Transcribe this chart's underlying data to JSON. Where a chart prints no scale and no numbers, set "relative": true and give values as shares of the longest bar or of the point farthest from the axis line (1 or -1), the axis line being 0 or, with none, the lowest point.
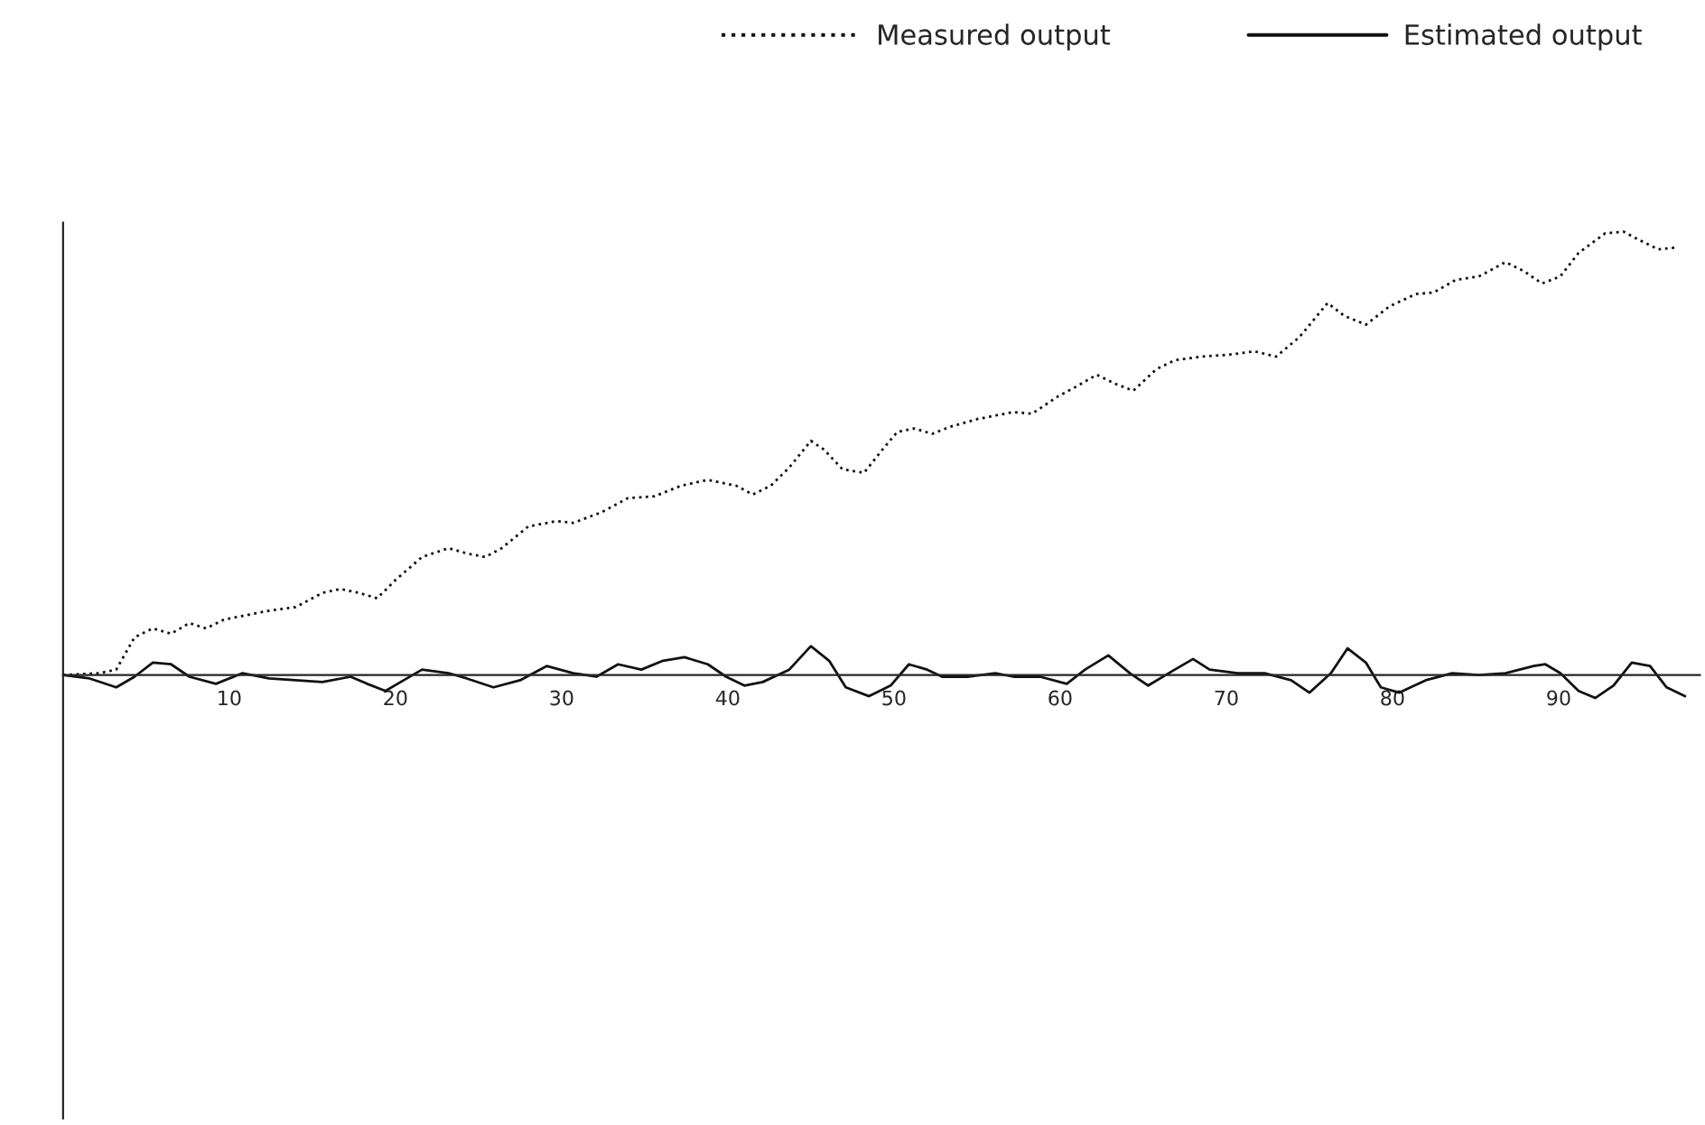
{
  "chart_data": {
    "type": "line",
    "relative": true,
    "x": [
      0,
      2.2,
      3.2,
      4.3,
      5.4,
      6.5,
      7.6,
      8.6,
      9.7,
      10.8,
      12.4,
      14.0,
      15.6,
      16.7,
      17.8,
      18.9,
      20.0,
      21.6,
      23.2,
      24.3,
      25.4,
      26.4,
      28.0,
      29.7,
      30.7,
      32.4,
      34.0,
      35.6,
      37.2,
      38.8,
      40.5,
      41.5,
      42.6,
      43.7,
      45.0,
      45.8,
      46.9,
      48.2,
      49.3,
      50.2,
      51.2,
      52.3,
      53.4,
      55.0,
      56.1,
      57.2,
      58.3,
      59.9,
      60.9,
      62.2,
      63.3,
      64.4,
      65.8,
      66.9,
      68.5,
      70.1,
      71.7,
      73.0,
      74.4,
      76.1,
      77.1,
      78.4,
      79.8,
      81.4,
      82.5,
      83.8,
      85.2,
      86.8,
      87.9,
      89.0,
      90.1,
      91.2,
      92.8,
      93.9,
      94.9,
      96.0,
      97.1
    ],
    "xlim": [
      0,
      98.5
    ],
    "xticks": [
      10,
      20,
      30,
      40,
      50,
      60,
      70,
      80,
      90
    ],
    "series": [
      {
        "name": "Measured output",
        "color": "#111111",
        "line_style": "dotted",
        "values": [
          0,
          0.004,
          0.012,
          0.085,
          0.105,
          0.093,
          0.117,
          0.105,
          0.125,
          0.133,
          0.145,
          0.153,
          0.185,
          0.194,
          0.185,
          0.173,
          0.214,
          0.266,
          0.286,
          0.274,
          0.266,
          0.286,
          0.335,
          0.347,
          0.343,
          0.367,
          0.399,
          0.403,
          0.427,
          0.44,
          0.427,
          0.407,
          0.427,
          0.468,
          0.528,
          0.508,
          0.464,
          0.456,
          0.508,
          0.548,
          0.556,
          0.544,
          0.56,
          0.577,
          0.585,
          0.593,
          0.589,
          0.629,
          0.649,
          0.677,
          0.657,
          0.641,
          0.69,
          0.71,
          0.718,
          0.722,
          0.73,
          0.718,
          0.762,
          0.839,
          0.81,
          0.79,
          0.831,
          0.859,
          0.863,
          0.891,
          0.899,
          0.931,
          0.911,
          0.883,
          0.899,
          0.952,
          0.996,
          1,
          0.98,
          0.96,
          0.964
        ]
      },
      {
        "name": "Estimated output",
        "color": "#111111",
        "line_style": "solid",
        "x": [
          0,
          1.6,
          3.2,
          4.3,
          5.4,
          6.5,
          7.6,
          9.2,
          10.8,
          12.4,
          14.0,
          15.6,
          17.3,
          18.3,
          19.4,
          20.5,
          21.6,
          23.2,
          24.3,
          25.9,
          27.5,
          29.1,
          30.7,
          32.1,
          33.4,
          34.8,
          36.1,
          37.4,
          38.8,
          39.9,
          41.0,
          42.1,
          43.7,
          45.0,
          46.1,
          47.1,
          48.5,
          49.8,
          50.9,
          52.0,
          52.9,
          54.5,
          56.1,
          57.2,
          58.8,
          60.4,
          61.5,
          62.9,
          64.2,
          65.3,
          66.9,
          68.0,
          69.0,
          70.7,
          72.3,
          73.9,
          75.0,
          76.3,
          77.3,
          78.4,
          79.3,
          80.4,
          82.0,
          83.6,
          85.2,
          86.8,
          88.5,
          89.2,
          90.1,
          91.2,
          92.2,
          93.3,
          94.4,
          95.5,
          96.5,
          97.6
        ],
        "values": [
          0,
          -0.008,
          -0.028,
          -0.004,
          0.028,
          0.024,
          -0.004,
          -0.02,
          0.004,
          -0.008,
          -0.012,
          -0.016,
          -0.004,
          -0.02,
          -0.036,
          -0.012,
          0.012,
          0.004,
          -0.008,
          -0.028,
          -0.012,
          0.02,
          0.004,
          -0.004,
          0.024,
          0.012,
          0.032,
          0.04,
          0.024,
          -0.004,
          -0.024,
          -0.016,
          0.012,
          0.065,
          0.032,
          -0.028,
          -0.048,
          -0.024,
          0.024,
          0.012,
          -0.004,
          -0.004,
          0.004,
          -0.004,
          -0.004,
          -0.02,
          0.012,
          0.044,
          0.004,
          -0.024,
          0.012,
          0.036,
          0.012,
          0.004,
          0.004,
          -0.012,
          -0.04,
          0.004,
          0.06,
          0.028,
          -0.028,
          -0.04,
          -0.012,
          0.004,
          0,
          0.004,
          0.02,
          0.024,
          0.004,
          -0.036,
          -0.052,
          -0.024,
          0.028,
          0.02,
          -0.028,
          -0.048
        ]
      }
    ],
    "legend": "top right",
    "grid": false
  }
}
